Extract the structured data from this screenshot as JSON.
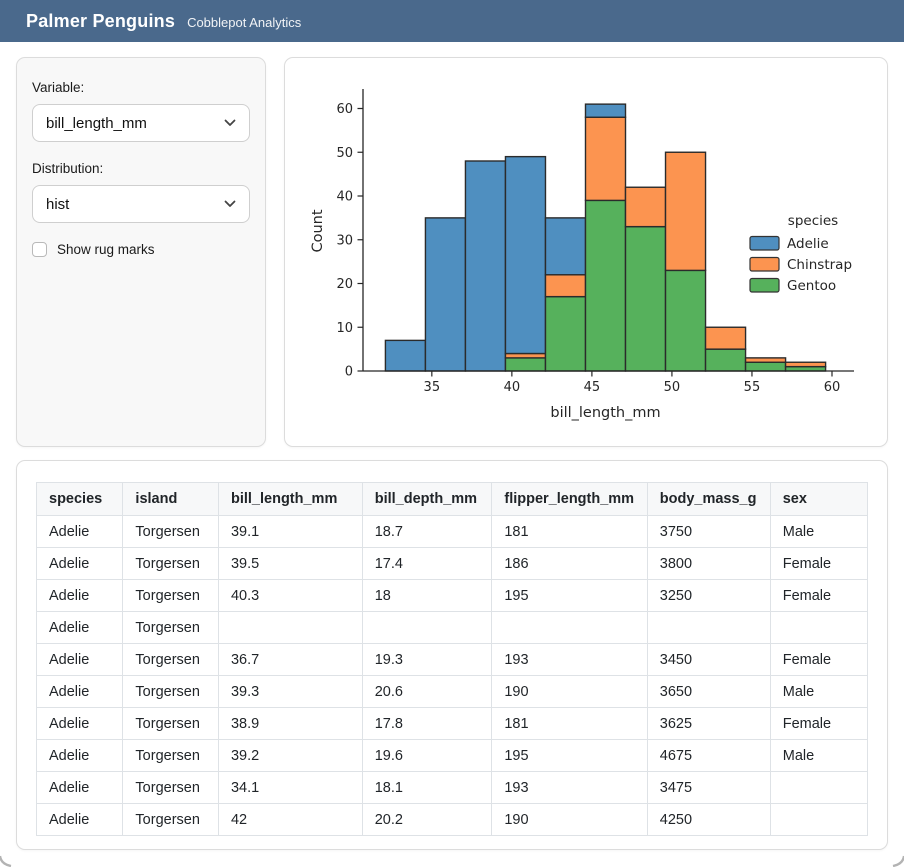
{
  "header": {
    "title": "Palmer Penguins",
    "subtitle": "Cobblepot Analytics",
    "bg_color": "#4a698c"
  },
  "sidebar": {
    "variable_label": "Variable:",
    "variable_value": "bill_length_mm",
    "distribution_label": "Distribution:",
    "distribution_value": "hist",
    "rug_label": "Show rug marks",
    "rug_checked": false
  },
  "chart_data": {
    "type": "bar",
    "subtype": "stacked-histogram",
    "xlabel": "bill_length_mm",
    "ylabel": "Count",
    "bin_start": 32.1,
    "bin_width": 2.5,
    "bin_count": 11,
    "xlim": [
      30.7,
      61.0
    ],
    "ylim": [
      0,
      64
    ],
    "xticks": [
      35,
      40,
      45,
      50,
      55,
      60
    ],
    "yticks": [
      0,
      10,
      20,
      30,
      40,
      50,
      60
    ],
    "grid": false,
    "legend_title": "species",
    "legend_position": "right",
    "edge_color": "#2b2b2b",
    "series": [
      {
        "name": "Adelie",
        "color": "#4f8fc0",
        "values": [
          7,
          35,
          48,
          45,
          13,
          3,
          0,
          0,
          0,
          0,
          0
        ]
      },
      {
        "name": "Chinstrap",
        "color": "#fc9450",
        "values": [
          0,
          0,
          0,
          1,
          5,
          19,
          9,
          27,
          5,
          1,
          1
        ]
      },
      {
        "name": "Gentoo",
        "color": "#56b15c",
        "values": [
          0,
          0,
          0,
          3,
          17,
          39,
          33,
          23,
          5,
          2,
          1
        ]
      }
    ],
    "stack_bottom_to_top": [
      "Gentoo",
      "Chinstrap",
      "Adelie"
    ],
    "stacked_totals": [
      7,
      35,
      48,
      49,
      35,
      61,
      42,
      50,
      10,
      3,
      2
    ]
  },
  "table": {
    "columns": [
      "species",
      "island",
      "bill_length_mm",
      "bill_depth_mm",
      "flipper_length_mm",
      "body_mass_g",
      "sex"
    ],
    "rows": [
      [
        "Adelie",
        "Torgersen",
        "39.1",
        "18.7",
        "181",
        "3750",
        "Male"
      ],
      [
        "Adelie",
        "Torgersen",
        "39.5",
        "17.4",
        "186",
        "3800",
        "Female"
      ],
      [
        "Adelie",
        "Torgersen",
        "40.3",
        "18",
        "195",
        "3250",
        "Female"
      ],
      [
        "Adelie",
        "Torgersen",
        "",
        "",
        "",
        "",
        ""
      ],
      [
        "Adelie",
        "Torgersen",
        "36.7",
        "19.3",
        "193",
        "3450",
        "Female"
      ],
      [
        "Adelie",
        "Torgersen",
        "39.3",
        "20.6",
        "190",
        "3650",
        "Male"
      ],
      [
        "Adelie",
        "Torgersen",
        "38.9",
        "17.8",
        "181",
        "3625",
        "Female"
      ],
      [
        "Adelie",
        "Torgersen",
        "39.2",
        "19.6",
        "195",
        "4675",
        "Male"
      ],
      [
        "Adelie",
        "Torgersen",
        "34.1",
        "18.1",
        "193",
        "3475",
        ""
      ],
      [
        "Adelie",
        "Torgersen",
        "42",
        "20.2",
        "190",
        "4250",
        ""
      ]
    ]
  }
}
